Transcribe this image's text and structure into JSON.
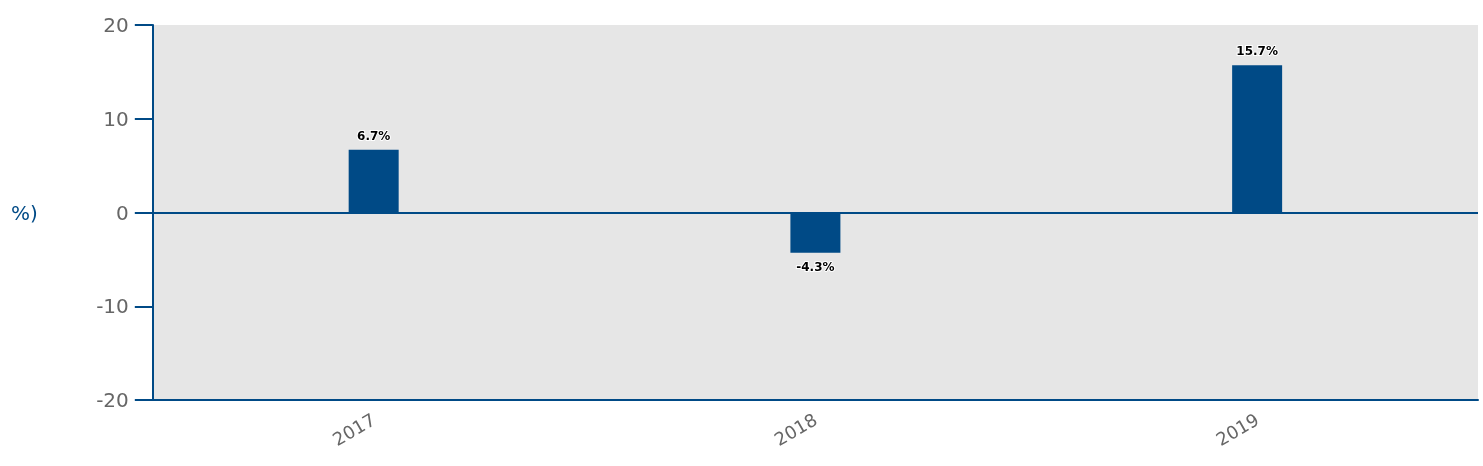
{
  "chart_data": {
    "type": "bar",
    "ylabel": "%)",
    "categories": [
      "2017",
      "2018",
      "2019"
    ],
    "values": [
      6.7,
      -4.3,
      15.7
    ],
    "value_labels": [
      "6.7%",
      "-4.3%",
      "15.7%"
    ],
    "color": "#004a86",
    "ylim": [
      -20,
      20
    ],
    "yticks": [
      -20,
      -10,
      0,
      10,
      20
    ],
    "grid": false,
    "ref_lines": [
      {
        "axis": "y",
        "value": 0,
        "color": "#004a86"
      }
    ]
  }
}
